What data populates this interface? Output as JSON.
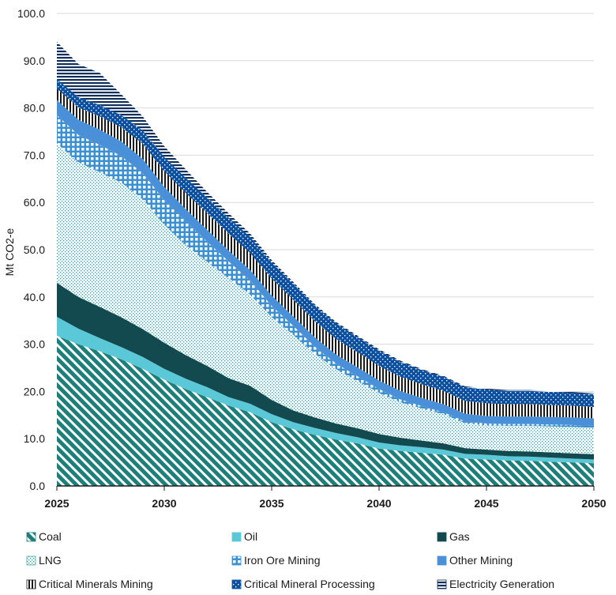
{
  "chart_data": {
    "type": "area",
    "stacked": true,
    "title": "",
    "xlabel": "",
    "ylabel": "Mt CO2-e",
    "ylim": [
      0,
      100
    ],
    "yticks": [
      "0.0",
      "10.0",
      "20.0",
      "30.0",
      "40.0",
      "50.0",
      "60.0",
      "70.0",
      "80.0",
      "90.0",
      "100.0"
    ],
    "xlim": [
      2025,
      2050
    ],
    "xticks": [
      "2025",
      "2030",
      "2035",
      "2040",
      "2045",
      "2050"
    ],
    "legend_position": "bottom",
    "x": [
      2025,
      2026,
      2027,
      2028,
      2029,
      2030,
      2031,
      2032,
      2033,
      2034,
      2035,
      2036,
      2037,
      2038,
      2039,
      2040,
      2041,
      2042,
      2043,
      2044,
      2045,
      2046,
      2047,
      2048,
      2049,
      2050
    ],
    "series": [
      {
        "name": "Coal",
        "color": "#1e7f7a",
        "pattern": "diagonal-stripes",
        "values": [
          31.8,
          30.0,
          28.5,
          26.8,
          24.8,
          22.5,
          20.5,
          18.8,
          17.0,
          15.6,
          13.5,
          12.0,
          10.8,
          9.8,
          9.0,
          7.9,
          7.4,
          7.0,
          6.6,
          5.8,
          5.6,
          5.4,
          5.3,
          5.1,
          5.0,
          4.8
        ]
      },
      {
        "name": "Oil",
        "color": "#5bc8d8",
        "pattern": "solid",
        "values": [
          4.0,
          3.3,
          2.8,
          2.6,
          2.5,
          2.3,
          2.2,
          2.1,
          1.8,
          1.8,
          1.7,
          1.5,
          1.5,
          1.4,
          1.3,
          1.3,
          1.2,
          1.2,
          1.1,
          1.0,
          1.0,
          0.9,
          0.9,
          0.9,
          0.8,
          0.8
        ]
      },
      {
        "name": "Gas",
        "color": "#134a4f",
        "pattern": "solid",
        "values": [
          7.2,
          6.7,
          6.6,
          6.3,
          5.9,
          5.5,
          5.0,
          4.5,
          4.0,
          3.8,
          3.0,
          2.5,
          2.2,
          2.0,
          1.9,
          1.8,
          1.6,
          1.4,
          1.3,
          1.2,
          1.1,
          1.1,
          1.1,
          1.1,
          1.1,
          1.1
        ]
      },
      {
        "name": "LNG",
        "color": "#5aa9b3",
        "pattern": "fine-dots",
        "values": [
          29.5,
          28.5,
          28.5,
          28.5,
          27.5,
          25.0,
          23.3,
          22.0,
          21.2,
          19.3,
          17.5,
          16.0,
          13.5,
          11.5,
          10.0,
          8.7,
          7.5,
          6.8,
          6.2,
          5.3,
          5.1,
          5.3,
          5.4,
          5.5,
          5.6,
          5.6
        ]
      },
      {
        "name": "Iron Ore Mining",
        "color": "#3f8fcf",
        "pattern": "grid",
        "values": [
          6.0,
          5.8,
          5.8,
          5.6,
          5.5,
          5.2,
          5.0,
          4.3,
          3.5,
          3.0,
          2.4,
          1.9,
          1.5,
          1.2,
          1.0,
          0.8,
          0.6,
          0.5,
          0.4,
          0.4,
          0.4,
          0.4,
          0.4,
          0.4,
          0.4,
          0.4
        ]
      },
      {
        "name": "Other Mining",
        "color": "#4a90d9",
        "pattern": "solid",
        "values": [
          3.2,
          3.2,
          3.2,
          3.1,
          3.0,
          2.8,
          2.6,
          2.5,
          2.3,
          2.2,
          2.2,
          2.0,
          2.0,
          1.9,
          1.9,
          1.8,
          1.8,
          1.7,
          1.7,
          1.6,
          1.6,
          1.6,
          1.6,
          1.6,
          1.6,
          1.6
        ]
      },
      {
        "name": "Critical Minerals Mining",
        "color": "#1a1a1a",
        "pattern": "vertical-stripes",
        "values": [
          2.4,
          2.6,
          2.8,
          3.0,
          3.2,
          3.3,
          3.4,
          3.5,
          3.6,
          3.6,
          3.6,
          3.5,
          3.4,
          3.3,
          3.2,
          3.1,
          3.0,
          2.9,
          2.8,
          2.7,
          2.7,
          2.6,
          2.6,
          2.5,
          2.5,
          2.4
        ]
      },
      {
        "name": "Critical Mineral Processing",
        "color": "#0a4fa0",
        "pattern": "dots-on-blue",
        "values": [
          2.0,
          2.2,
          2.4,
          2.6,
          2.8,
          3.0,
          3.2,
          3.3,
          3.4,
          3.4,
          3.4,
          3.4,
          3.3,
          3.3,
          3.2,
          3.2,
          3.1,
          3.0,
          3.0,
          2.9,
          2.9,
          2.8,
          2.8,
          2.8,
          2.7,
          2.7
        ]
      },
      {
        "name": "Electricity Generation",
        "color": "#102e5a",
        "pattern": "horizontal-stripes",
        "values": [
          7.9,
          7.0,
          6.8,
          4.4,
          3.0,
          2.3,
          1.8,
          1.2,
          0.9,
          0.7,
          0.5,
          0.4,
          0.3,
          0.3,
          0.3,
          0.3,
          0.3,
          0.2,
          0.2,
          0.2,
          0.2,
          0.2,
          0.2,
          0.2,
          0.2,
          0.2
        ]
      }
    ]
  }
}
